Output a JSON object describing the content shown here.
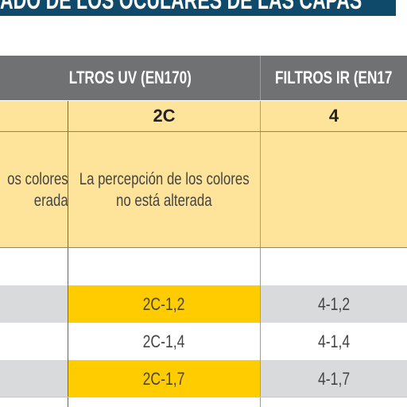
{
  "banner": {
    "title": "ADO DE LOS OCULARES DE LAS CAPAS"
  },
  "headers": {
    "uv": "LTROS UV (EN170)",
    "ir": "FILTROS IR (EN17"
  },
  "subheaders": {
    "uv": "2C",
    "ir": "4"
  },
  "descriptions": {
    "left_line1": "os colores",
    "left_line2": "erada",
    "middle_line1": "La percepción de los colores",
    "middle_line2": "no está alterada"
  },
  "rows": [
    {
      "c2": "",
      "c4": ""
    },
    {
      "c2": "2C-1,2",
      "c4": "4-1,2"
    },
    {
      "c2": "2C-1,4",
      "c4": "4-1,4"
    },
    {
      "c2": "2C-1,7",
      "c4": "4-1,7"
    }
  ],
  "colors": {
    "banner": "#0f4a6a",
    "header": "#6f7172",
    "subheader": "#fde49a",
    "highlight": "#ffcc00",
    "row_grey": "#d8dadb"
  }
}
